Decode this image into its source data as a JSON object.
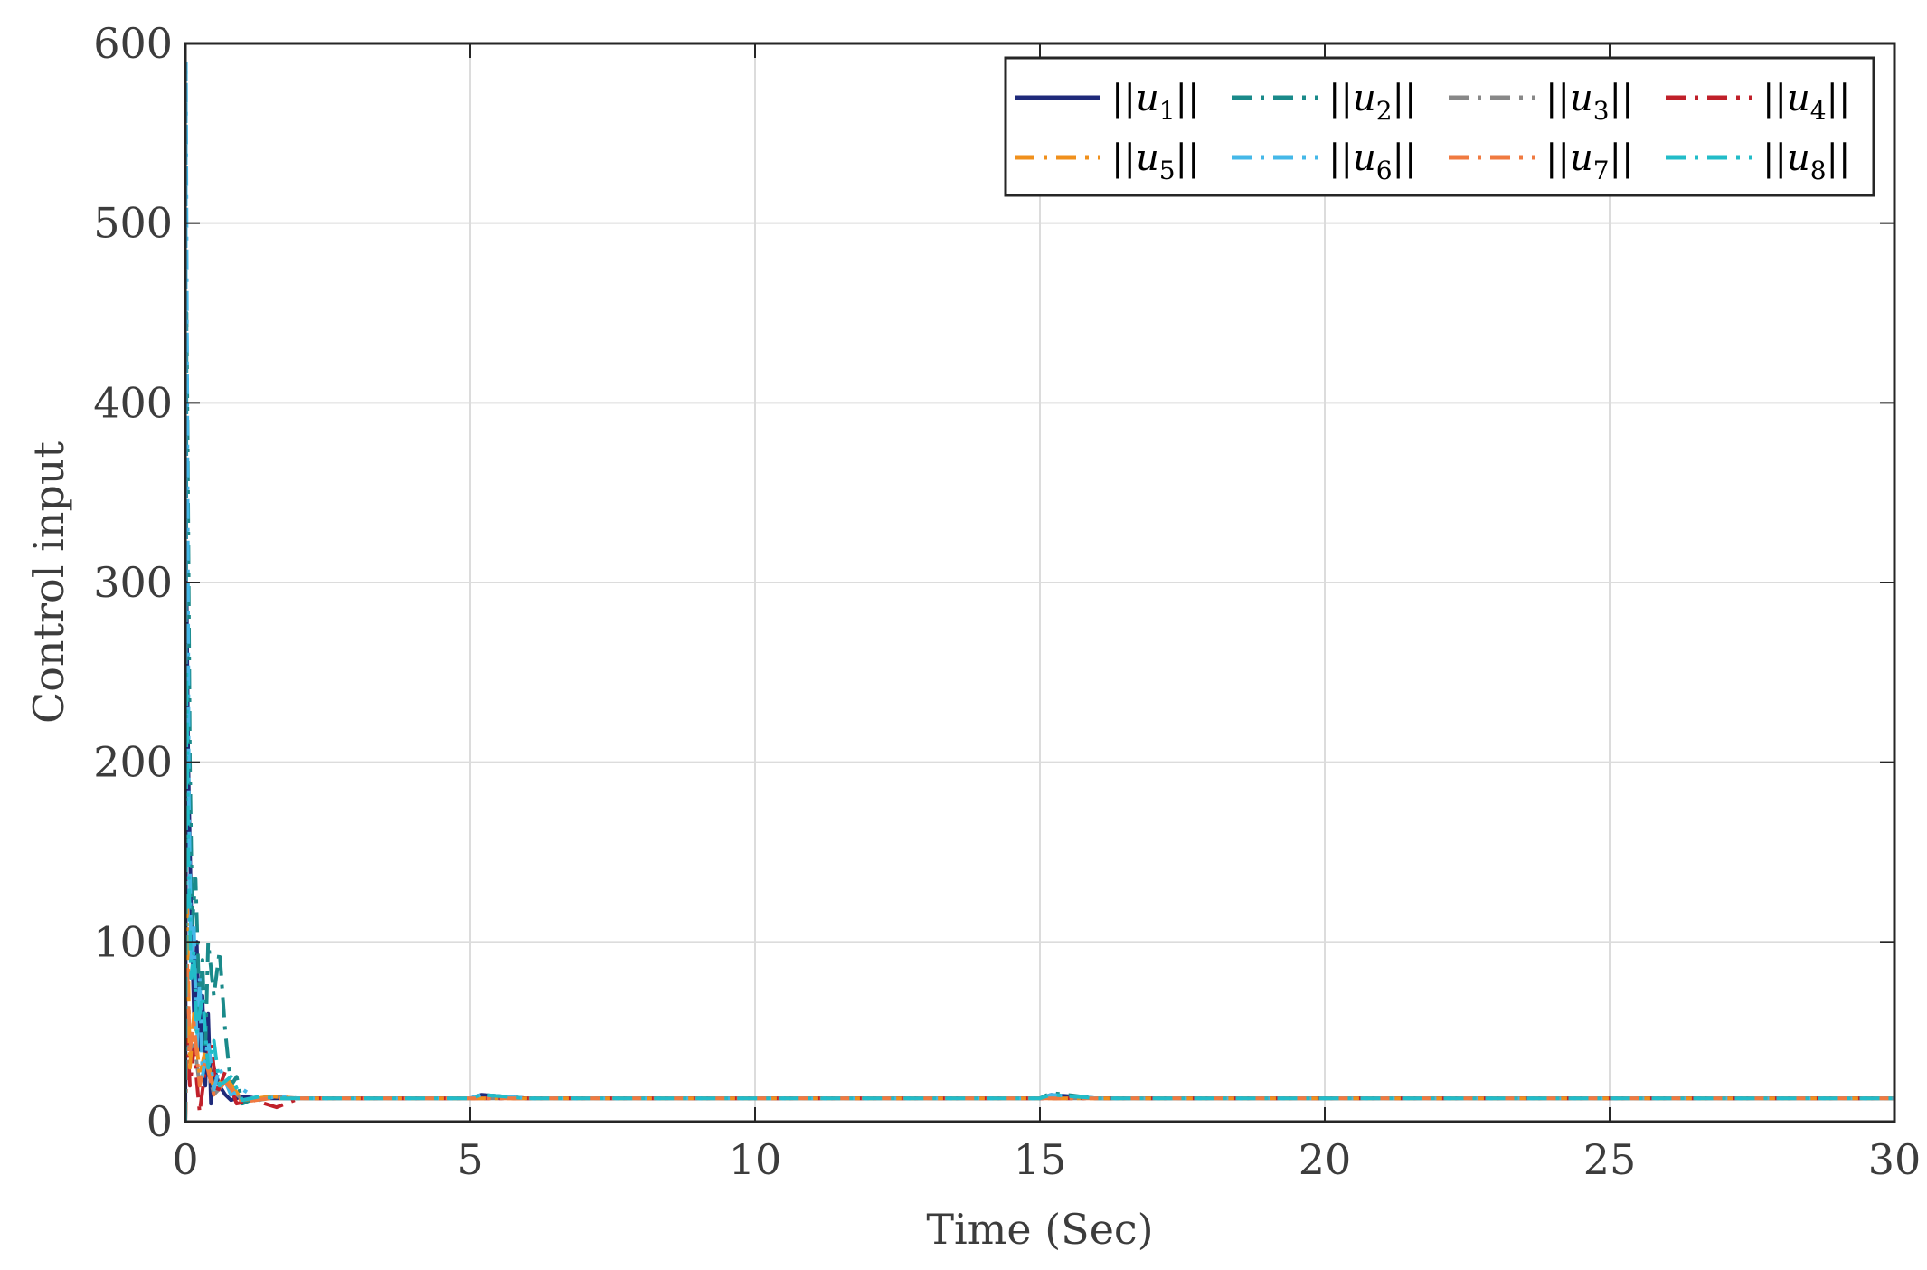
{
  "chart_data": {
    "type": "line",
    "title": "",
    "xlabel": "Time (Sec)",
    "ylabel": "Control input",
    "xlim": [
      0,
      30
    ],
    "ylim": [
      0,
      600
    ],
    "xticks": [
      0,
      5,
      10,
      15,
      20,
      25,
      30
    ],
    "yticks": [
      0,
      100,
      200,
      300,
      400,
      500,
      600
    ],
    "xtick_labels": [
      "0",
      "5",
      "10",
      "15",
      "20",
      "25",
      "30"
    ],
    "ytick_labels": [
      "0",
      "100",
      "200",
      "300",
      "400",
      "500",
      "600"
    ],
    "grid": true,
    "legend_position": "top-right",
    "legend_columns": 4,
    "series": [
      {
        "name": "||u1||",
        "label_pre": "||u",
        "label_sub": "1",
        "label_post": "||",
        "color": "#1f2a7a",
        "dash": "solid",
        "x": [
          0,
          0.02,
          0.05,
          0.1,
          0.15,
          0.2,
          0.25,
          0.3,
          0.35,
          0.4,
          0.45,
          0.5,
          0.6,
          0.7,
          0.8,
          1.0,
          1.3,
          1.6,
          2.0,
          3,
          5,
          5.2,
          6,
          10,
          15,
          15.2,
          16,
          20,
          25,
          30
        ],
        "y": [
          0,
          300,
          200,
          120,
          60,
          100,
          40,
          70,
          20,
          60,
          10,
          30,
          20,
          15,
          12,
          14,
          13,
          13,
          13,
          13,
          13,
          15,
          13,
          13,
          13,
          15,
          13,
          13,
          13,
          13
        ]
      },
      {
        "name": "||u2||",
        "label_pre": "||u",
        "label_sub": "2",
        "label_post": "||",
        "color": "#1a8a8a",
        "dash": "dashdot",
        "x": [
          0,
          0.02,
          0.04,
          0.08,
          0.12,
          0.18,
          0.25,
          0.3,
          0.35,
          0.4,
          0.5,
          0.6,
          0.7,
          0.8,
          0.9,
          1.0,
          1.3,
          1.6,
          2.0,
          3,
          5,
          5.2,
          6,
          10,
          15,
          15.2,
          16,
          20,
          25,
          30
        ],
        "y": [
          0,
          450,
          380,
          200,
          110,
          135,
          60,
          90,
          40,
          100,
          70,
          95,
          50,
          20,
          25,
          10,
          14,
          13,
          13,
          13,
          13,
          15,
          13,
          13,
          13,
          16,
          13,
          13,
          13,
          13
        ]
      },
      {
        "name": "||u3||",
        "label_pre": "||u",
        "label_sub": "3",
        "label_post": "||",
        "color": "#888888",
        "dash": "dashdot",
        "x": [
          0,
          0.03,
          0.08,
          0.15,
          0.25,
          0.35,
          0.5,
          0.7,
          1.0,
          1.5,
          2,
          3,
          5,
          10,
          15,
          20,
          25,
          30
        ],
        "y": [
          0,
          60,
          30,
          45,
          20,
          35,
          15,
          22,
          12,
          14,
          13,
          13,
          13,
          13,
          13,
          13,
          13,
          13
        ]
      },
      {
        "name": "||u4||",
        "label_pre": "||u",
        "label_sub": "4",
        "label_post": "||",
        "color": "#c0202a",
        "dash": "dashdot",
        "x": [
          0,
          0.03,
          0.08,
          0.15,
          0.25,
          0.35,
          0.45,
          0.55,
          0.7,
          0.9,
          1.2,
          1.6,
          2.0,
          3,
          5,
          10,
          15,
          20,
          25,
          30
        ],
        "y": [
          0,
          50,
          20,
          40,
          5,
          30,
          45,
          15,
          28,
          10,
          12,
          8,
          13,
          13,
          13,
          13,
          13,
          13,
          13,
          13
        ]
      },
      {
        "name": "||u5||",
        "label_pre": "||u",
        "label_sub": "5",
        "label_post": "||",
        "color": "#f0901c",
        "dash": "dashdot",
        "x": [
          0,
          0.03,
          0.08,
          0.15,
          0.25,
          0.35,
          0.5,
          0.7,
          1.0,
          1.5,
          2,
          3,
          5,
          10,
          15,
          20,
          25,
          30
        ],
        "y": [
          0,
          120,
          30,
          60,
          25,
          40,
          18,
          25,
          12,
          14,
          13,
          13,
          13,
          13,
          13,
          13,
          13,
          13
        ]
      },
      {
        "name": "||u6||",
        "label_pre": "||u",
        "label_sub": "6",
        "label_post": "||",
        "color": "#45b8e8",
        "dash": "dashdot",
        "x": [
          0,
          0.01,
          0.03,
          0.06,
          0.1,
          0.15,
          0.2,
          0.25,
          0.3,
          0.4,
          0.5,
          0.6,
          0.8,
          1.0,
          1.3,
          1.6,
          2.0,
          3,
          5,
          5.2,
          6,
          10,
          15,
          15.2,
          16,
          20,
          25,
          30
        ],
        "y": [
          0,
          590,
          420,
          180,
          90,
          110,
          40,
          80,
          25,
          45,
          18,
          30,
          15,
          18,
          12,
          14,
          13,
          13,
          13,
          15,
          13,
          13,
          13,
          15,
          13,
          13,
          13,
          13
        ]
      },
      {
        "name": "||u7||",
        "label_pre": "||u",
        "label_sub": "7",
        "label_post": "||",
        "color": "#f07a40",
        "dash": "dashdot",
        "x": [
          0,
          0.03,
          0.08,
          0.15,
          0.25,
          0.35,
          0.5,
          0.7,
          1.0,
          1.5,
          2,
          3,
          5,
          10,
          15,
          20,
          25,
          30
        ],
        "y": [
          0,
          90,
          40,
          55,
          20,
          35,
          15,
          22,
          11,
          13,
          13,
          13,
          13,
          13,
          13,
          13,
          13,
          13
        ]
      },
      {
        "name": "||u8||",
        "label_pre": "||u",
        "label_sub": "8",
        "label_post": "||",
        "color": "#22bcc8",
        "dash": "dashdot",
        "x": [
          0,
          0.02,
          0.05,
          0.1,
          0.15,
          0.2,
          0.3,
          0.4,
          0.5,
          0.6,
          0.8,
          1.0,
          1.3,
          1.6,
          2.0,
          3,
          5,
          5.2,
          6,
          10,
          15,
          15.2,
          16,
          20,
          25,
          30
        ],
        "y": [
          0,
          250,
          150,
          80,
          95,
          50,
          70,
          30,
          45,
          20,
          25,
          12,
          14,
          13,
          13,
          13,
          13,
          15,
          13,
          13,
          13,
          15,
          13,
          13,
          13,
          13
        ]
      }
    ]
  }
}
